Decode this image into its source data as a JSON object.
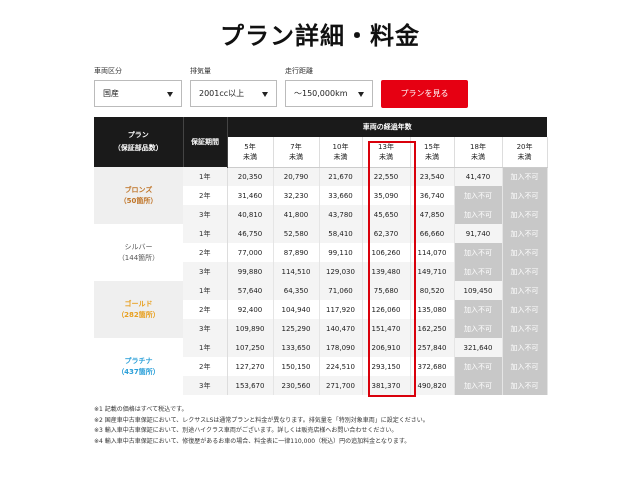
{
  "title": "プラン詳細・料金",
  "filters": [
    {
      "label": "車両区分",
      "value": "国産"
    },
    {
      "label": "排気量",
      "value": "2001cc以上"
    },
    {
      "label": "走行距離",
      "value": "〜150,000km"
    }
  ],
  "button_label": "プランを見る",
  "table": {
    "plan_header": "プラン\n（保証部品数）",
    "period_header": "保証期間",
    "years_header": "車両の経過年数",
    "year_columns": [
      "5年\n未満",
      "7年\n未満",
      "10年\n未満",
      "13年\n未満",
      "15年\n未満",
      "18年\n未満",
      "20年\n未満"
    ],
    "na_label": "加入不可",
    "groups": [
      {
        "name": "ブロンズ",
        "count": "（50箇所）",
        "rows": [
          {
            "period": "1年",
            "values": [
              "20,350",
              "20,790",
              "21,670",
              "22,550",
              "23,540",
              "41,470",
              null
            ]
          },
          {
            "period": "2年",
            "values": [
              "31,460",
              "32,230",
              "33,660",
              "35,090",
              "36,740",
              null,
              null
            ]
          },
          {
            "period": "3年",
            "values": [
              "40,810",
              "41,800",
              "43,780",
              "45,650",
              "47,850",
              null,
              null
            ]
          }
        ]
      },
      {
        "name": "シルバー",
        "count": "（144箇所）",
        "rows": [
          {
            "period": "1年",
            "values": [
              "46,750",
              "52,580",
              "58,410",
              "62,370",
              "66,660",
              "91,740",
              null
            ]
          },
          {
            "period": "2年",
            "values": [
              "77,000",
              "87,890",
              "99,110",
              "106,260",
              "114,070",
              null,
              null
            ]
          },
          {
            "period": "3年",
            "values": [
              "99,880",
              "114,510",
              "129,030",
              "139,480",
              "149,710",
              null,
              null
            ]
          }
        ]
      },
      {
        "name": "ゴールド",
        "count": "（282箇所）",
        "rows": [
          {
            "period": "1年",
            "values": [
              "57,640",
              "64,350",
              "71,060",
              "75,680",
              "80,520",
              "109,450",
              null
            ]
          },
          {
            "period": "2年",
            "values": [
              "92,400",
              "104,940",
              "117,920",
              "126,060",
              "135,080",
              null,
              null
            ]
          },
          {
            "period": "3年",
            "values": [
              "109,890",
              "125,290",
              "140,470",
              "151,470",
              "162,250",
              null,
              null
            ]
          }
        ]
      },
      {
        "name": "プラチナ",
        "count": "（437箇所）",
        "rows": [
          {
            "period": "1年",
            "values": [
              "107,250",
              "133,650",
              "178,090",
              "206,910",
              "257,840",
              "321,640",
              null
            ]
          },
          {
            "period": "2年",
            "values": [
              "127,270",
              "150,150",
              "224,510",
              "293,150",
              "372,680",
              null,
              null
            ]
          },
          {
            "period": "3年",
            "values": [
              "153,670",
              "230,560",
              "271,700",
              "381,370",
              "490,820",
              null,
              null
            ]
          }
        ]
      }
    ]
  },
  "notes": [
    "※1 記載の価格はすべて税込です。",
    "※2 国産車中古車保証において、レクサスLSは通常プランと料金が異なります。排気量を「特別対象車両」に設定ください。",
    "※3 輸入車中古車保証において、別途ハイクラス車両がございます。詳しくは販売店様へお問い合わせください。",
    "※4 輸入車中古車保証において、修復歴があるお車の場合、料金表に一律110,000（税込）円の追加料金となります。"
  ],
  "colors": {
    "accent": "#e60012",
    "bronze": "#c0762a",
    "gold": "#e8a020",
    "platinum": "#2a9fd8",
    "header": "#1a1a1a"
  }
}
